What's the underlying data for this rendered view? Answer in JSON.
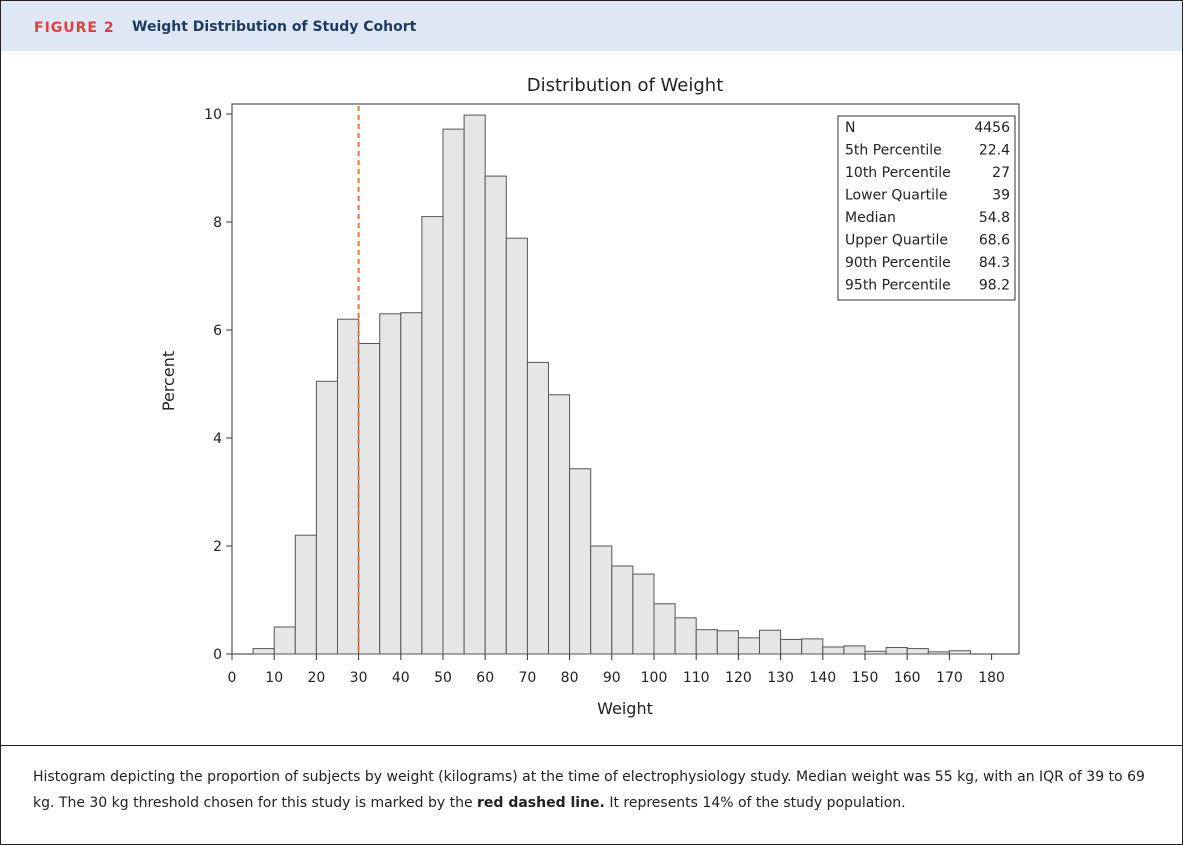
{
  "figure": {
    "label": "FIGURE 2",
    "title": "Weight Distribution of Study Cohort"
  },
  "caption": {
    "text_1": "Histogram depicting the proportion of subjects by weight (kilograms) at the time of electrophysiology study. Median weight was 55 kg, with an IQR of 39 to 69 kg. The 30 kg threshold chosen for this study is marked by the ",
    "bold": "red dashed line.",
    "text_2": " It represents 14% of the study population."
  },
  "chart_data": {
    "type": "bar",
    "title": "Distribution of Weight",
    "xlabel": "Weight",
    "ylabel": "Percent",
    "xlim": [
      0,
      180
    ],
    "ylim": [
      0,
      10
    ],
    "x_ticks": [
      0,
      10,
      20,
      30,
      40,
      50,
      60,
      70,
      80,
      90,
      100,
      110,
      120,
      130,
      140,
      150,
      160,
      170,
      180
    ],
    "y_ticks": [
      0,
      2,
      4,
      6,
      8,
      10
    ],
    "bin_width": 5,
    "bins": [
      {
        "start": 5,
        "value": 0.1
      },
      {
        "start": 10,
        "value": 0.5
      },
      {
        "start": 15,
        "value": 2.2
      },
      {
        "start": 20,
        "value": 5.05
      },
      {
        "start": 25,
        "value": 6.2
      },
      {
        "start": 30,
        "value": 5.75
      },
      {
        "start": 35,
        "value": 6.3
      },
      {
        "start": 40,
        "value": 6.32
      },
      {
        "start": 45,
        "value": 8.1
      },
      {
        "start": 50,
        "value": 9.72
      },
      {
        "start": 55,
        "value": 9.98
      },
      {
        "start": 60,
        "value": 8.85
      },
      {
        "start": 65,
        "value": 7.7
      },
      {
        "start": 70,
        "value": 5.4
      },
      {
        "start": 75,
        "value": 4.8
      },
      {
        "start": 80,
        "value": 3.43
      },
      {
        "start": 85,
        "value": 2.0
      },
      {
        "start": 90,
        "value": 1.63
      },
      {
        "start": 95,
        "value": 1.48
      },
      {
        "start": 100,
        "value": 0.93
      },
      {
        "start": 105,
        "value": 0.67
      },
      {
        "start": 110,
        "value": 0.45
      },
      {
        "start": 115,
        "value": 0.43
      },
      {
        "start": 120,
        "value": 0.3
      },
      {
        "start": 125,
        "value": 0.44
      },
      {
        "start": 130,
        "value": 0.27
      },
      {
        "start": 135,
        "value": 0.28
      },
      {
        "start": 140,
        "value": 0.13
      },
      {
        "start": 145,
        "value": 0.15
      },
      {
        "start": 150,
        "value": 0.05
      },
      {
        "start": 155,
        "value": 0.12
      },
      {
        "start": 160,
        "value": 0.1
      },
      {
        "start": 165,
        "value": 0.04
      },
      {
        "start": 170,
        "value": 0.06
      }
    ],
    "threshold_line": {
      "x": 30,
      "color": "#e8762c",
      "style": "dashed"
    },
    "bar_fill": "#e6e6e6",
    "bar_stroke": "#555555",
    "stats": [
      {
        "label": "N",
        "value": "4456"
      },
      {
        "label": "5th Percentile",
        "value": "22.4"
      },
      {
        "label": "10th Percentile",
        "value": "27"
      },
      {
        "label": "Lower Quartile",
        "value": "39"
      },
      {
        "label": "Median",
        "value": "54.8"
      },
      {
        "label": "Upper Quartile",
        "value": "68.6"
      },
      {
        "label": "90th Percentile",
        "value": "84.3"
      },
      {
        "label": "95th Percentile",
        "value": "98.2"
      }
    ]
  }
}
